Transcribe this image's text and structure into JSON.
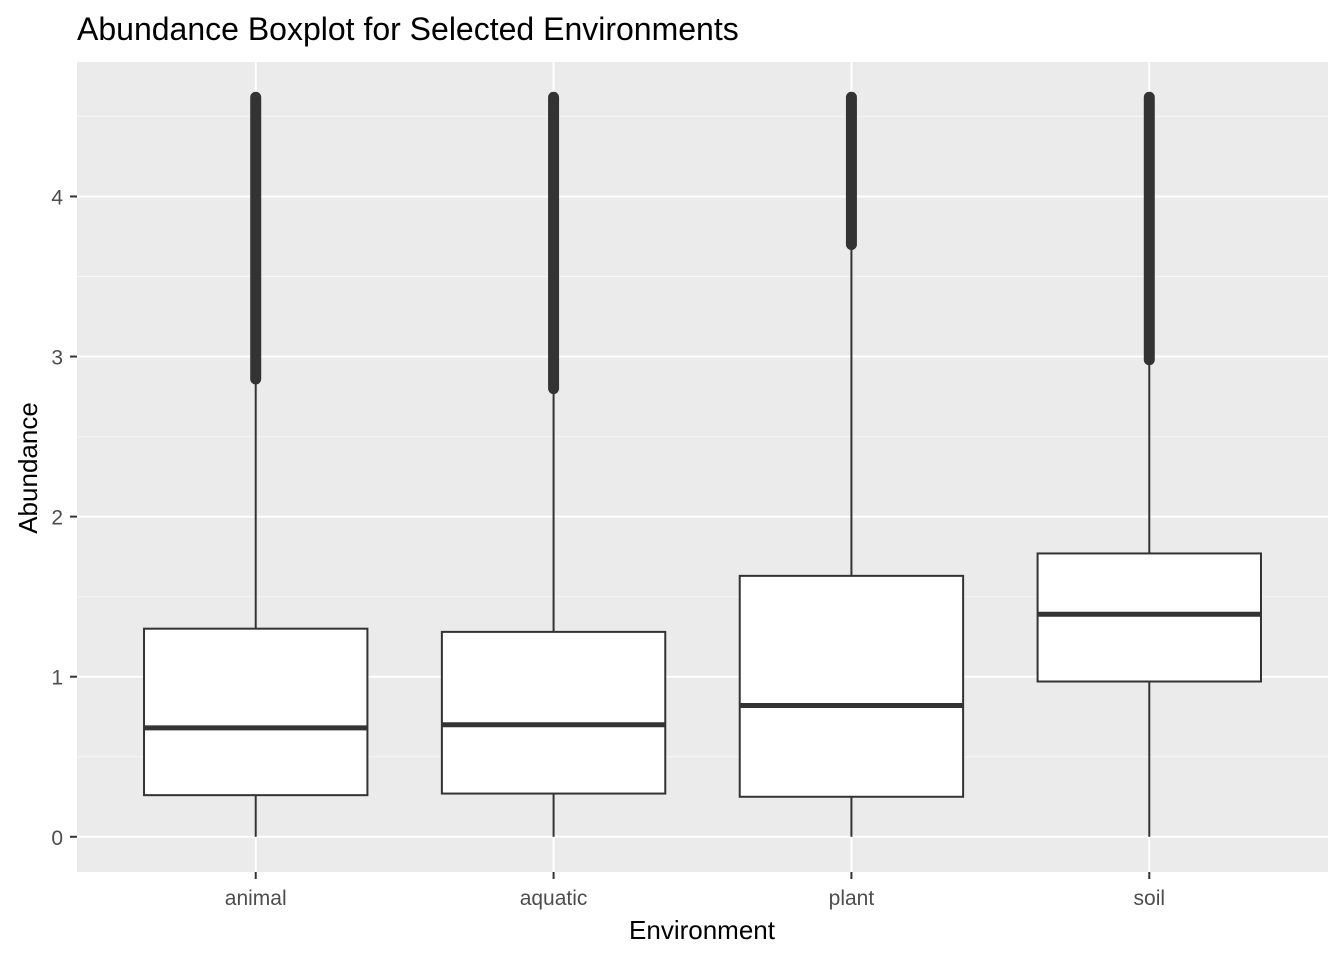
{
  "chart_data": {
    "type": "boxplot",
    "title": "Abundance Boxplot for Selected Environments",
    "xlabel": "Environment",
    "ylabel": "Abundance",
    "categories": [
      "animal",
      "aquatic",
      "plant",
      "soil"
    ],
    "boxes": [
      {
        "category": "animal",
        "whisker_low": 0.0,
        "q1": 0.26,
        "median": 0.68,
        "q3": 1.3,
        "whisker_high": 2.86,
        "outliers_range": [
          2.86,
          4.62
        ]
      },
      {
        "category": "aquatic",
        "whisker_low": 0.0,
        "q1": 0.27,
        "median": 0.7,
        "q3": 1.28,
        "whisker_high": 2.8,
        "outliers_range": [
          2.8,
          4.62
        ]
      },
      {
        "category": "plant",
        "whisker_low": 0.0,
        "q1": 0.25,
        "median": 0.82,
        "q3": 1.63,
        "whisker_high": 3.7,
        "outliers_range": [
          3.7,
          4.62
        ]
      },
      {
        "category": "soil",
        "whisker_low": 0.0,
        "q1": 0.97,
        "median": 1.39,
        "q3": 1.77,
        "whisker_high": 2.98,
        "outliers_range": [
          2.98,
          4.62
        ]
      }
    ],
    "y_ticks": [
      0,
      1,
      2,
      3,
      4
    ],
    "ylim": [
      -0.22,
      4.84
    ],
    "grid": true,
    "legend": "none",
    "colors": {
      "panel_background": "#ebebeb",
      "grid_major": "#ffffff",
      "grid_minor": "#f5f5f5",
      "box_fill": "#ffffff",
      "box_stroke": "#333333",
      "tick_text": "#4d4d4d"
    }
  }
}
